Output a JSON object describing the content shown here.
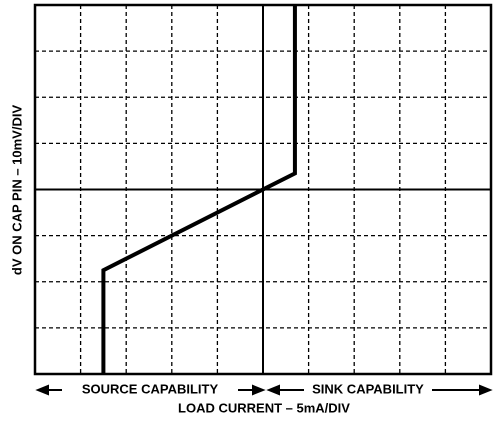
{
  "chart_data": {
    "type": "line",
    "x_label": "LOAD CURRENT – 5mA/DIV",
    "y_label": "dV ON CAP PIN – 10mV/DIV",
    "annotations": [
      "SOURCE CAPABILITY",
      "SINK CAPABILITY"
    ],
    "x": [
      -3.5,
      -3.5,
      0.7,
      0.7
    ],
    "series": [
      {
        "color": "#000000",
        "values": [
          -4,
          -1.75,
          0.35,
          4
        ]
      }
    ],
    "xlim": [
      -5,
      5
    ],
    "ylim": [
      -4,
      4
    ],
    "grid": true
  }
}
